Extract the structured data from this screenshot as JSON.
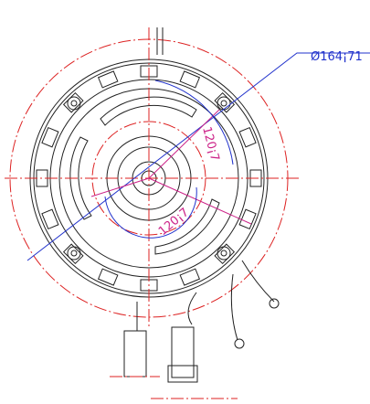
{
  "dimension_label": "Ø164¡71",
  "angle_labels": [
    "120¡7",
    "120¡7"
  ]
}
